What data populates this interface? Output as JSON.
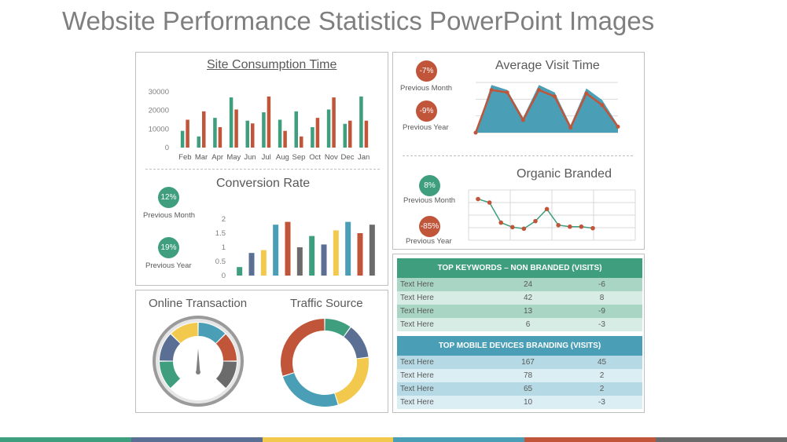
{
  "page": {
    "title": "Website Performance Statistics PowerPoint Images"
  },
  "colors": {
    "green": "#3e9e7e",
    "orange": "#c0553a",
    "blue": "#4a9eb5",
    "yellow": "#f2c94c",
    "slate": "#5b6e94",
    "gray": "#6b6b6b",
    "keywords_header": "#3e9e7e",
    "mobile_header": "#4a9eb5"
  },
  "site_consumption": {
    "title": "Site Consumption Time",
    "chart_data": {
      "type": "bar",
      "title": "Site Consumption Time",
      "categories": [
        "Feb",
        "Mar",
        "Apr",
        "May",
        "Jun",
        "Jul",
        "Aug",
        "Sep",
        "Oct",
        "Nov",
        "Dec",
        "Jan"
      ],
      "series": [
        {
          "color": "#3e9e7e",
          "values": [
            9000,
            6000,
            16000,
            27000,
            14500,
            19000,
            15000,
            19500,
            11000,
            20500,
            12800,
            27500
          ]
        },
        {
          "color": "#c0553a",
          "values": [
            15000,
            19500,
            11000,
            20500,
            13000,
            27500,
            9000,
            6000,
            16000,
            27000,
            14500,
            14500
          ]
        }
      ],
      "y_ticks": [
        "0",
        "10000",
        "20000",
        "30000"
      ],
      "ylim": [
        0,
        30000
      ],
      "grid": false
    }
  },
  "conversion_rate": {
    "title": "Conversion Rate",
    "previous_month": {
      "value": "12%",
      "label": "Previous Month"
    },
    "previous_year": {
      "value": "19%",
      "label": "Previous Year"
    },
    "chart_data": {
      "type": "bar",
      "title": "Conversion Rate",
      "values": [
        0.3,
        0.8,
        0.9,
        1.8,
        1.9,
        1.0,
        1.4,
        1.1,
        1.6,
        1.9,
        1.5,
        1.8
      ],
      "colors": [
        "#3e9e7e",
        "#5b6e94",
        "#f2c94c",
        "#4a9eb5",
        "#c0553a",
        "#6b6b6b",
        "#3e9e7e",
        "#5b6e94",
        "#f2c94c",
        "#4a9eb5",
        "#c0553a",
        "#6b6b6b"
      ],
      "y_ticks": [
        "0",
        "0.5",
        "1",
        "1.5",
        "2"
      ],
      "ylim": [
        0,
        2
      ],
      "grid": false
    }
  },
  "average_visit": {
    "title": "Average Visit Time",
    "previous_month": {
      "value": "-7%",
      "label": "Previous Month"
    },
    "previous_year": {
      "value": "-9%",
      "label": "Previous Year"
    },
    "chart_data": {
      "type": "area",
      "title": "Average Visit Time",
      "values": [
        0.0,
        0.85,
        0.8,
        0.25,
        0.85,
        0.72,
        0.1,
        0.78,
        0.55,
        0.12
      ],
      "top_values": [
        0.0,
        0.95,
        0.85,
        0.3,
        0.95,
        0.8,
        0.15,
        0.88,
        0.65,
        0.15
      ],
      "ylim": [
        0,
        1
      ],
      "grid": true
    }
  },
  "organic_branded": {
    "title": "Organic Branded",
    "previous_month": {
      "value": "8%",
      "label": "Previous Month"
    },
    "previous_year": {
      "value": "-85%",
      "label": "Previous Year"
    },
    "chart_data": {
      "type": "line",
      "title": "Organic Branded",
      "values": [
        0.82,
        0.75,
        0.35,
        0.26,
        0.23,
        0.38,
        0.62,
        0.3,
        0.27,
        0.27,
        0.24
      ],
      "ylim": [
        0,
        1
      ],
      "grid": true
    }
  },
  "online_transaction": {
    "title": "Online Transaction",
    "chart_data": {
      "type": "pie",
      "title": "Online Transaction",
      "segments": [
        {
          "color": "#3e9e7e",
          "value": 1
        },
        {
          "color": "#5b6e94",
          "value": 1
        },
        {
          "color": "#f2c94c",
          "value": 1
        },
        {
          "color": "#4a9eb5",
          "value": 1
        },
        {
          "color": "#c0553a",
          "value": 1
        },
        {
          "color": "#6b6b6b",
          "value": 1
        }
      ]
    }
  },
  "traffic_source": {
    "title": "Traffic Source",
    "chart_data": {
      "type": "pie",
      "title": "Traffic Source",
      "segments": [
        {
          "color": "#3e9e7e",
          "value": 10
        },
        {
          "color": "#5b6e94",
          "value": 13
        },
        {
          "color": "#f2c94c",
          "value": 22
        },
        {
          "color": "#4a9eb5",
          "value": 25
        },
        {
          "color": "#c0553a",
          "value": 30
        }
      ]
    }
  },
  "keywords_table": {
    "title": "TOP KEYWORDS – NON BRANDED  (VISITS)",
    "rows": [
      {
        "name": "Text Here",
        "a": "24",
        "b": "-6"
      },
      {
        "name": "Text Here",
        "a": "42",
        "b": "8"
      },
      {
        "name": "Text Here",
        "a": "13",
        "b": "-9"
      },
      {
        "name": "Text Here",
        "a": "6",
        "b": "-3"
      }
    ]
  },
  "mobile_table": {
    "title": "TOP MOBILE DEVICES BRANDING  (VISITS)",
    "rows": [
      {
        "name": "Text Here",
        "a": "167",
        "b": "45"
      },
      {
        "name": "Text Here",
        "a": "78",
        "b": "2"
      },
      {
        "name": "Text Here",
        "a": "65",
        "b": "2"
      },
      {
        "name": "Text Here",
        "a": "10",
        "b": "-3"
      }
    ]
  },
  "bottom_bar": [
    "#3e9e7e",
    "#5b6e94",
    "#f2c94c",
    "#4a9eb5",
    "#c0553a",
    "#6b6b6b"
  ]
}
